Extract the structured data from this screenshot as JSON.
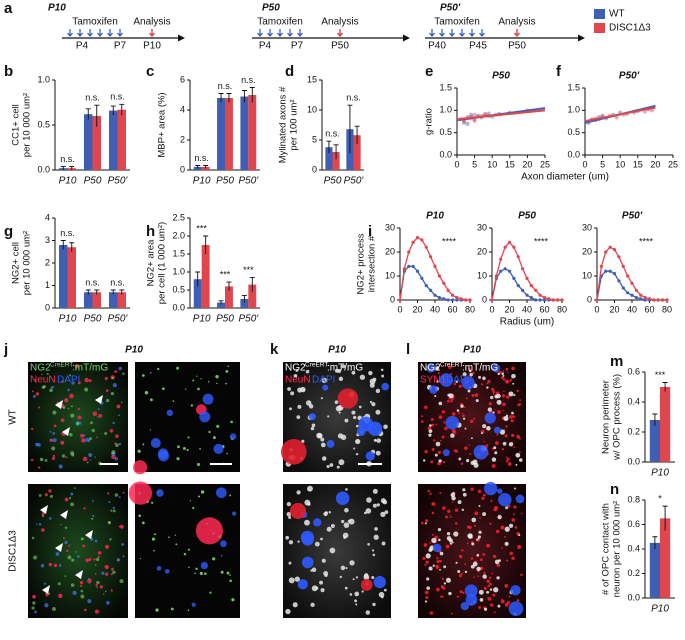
{
  "legend": [
    {
      "name": "WT",
      "color": "#3e5fb4"
    },
    {
      "name": "DISC1Δ3",
      "color": "#e0464e"
    }
  ],
  "timelines": [
    {
      "letter": "a",
      "title": "P10",
      "treatment": "Tamoxifen",
      "analysis": "Analysis",
      "ticks": [
        "P4",
        "P7",
        "P10"
      ]
    },
    {
      "title": "P50",
      "treatment": "Tamoxifen",
      "analysis": "Analysis",
      "ticks": [
        "P4",
        "P7",
        "P50"
      ]
    },
    {
      "title": "P50'",
      "treatment": "Tamoxifen",
      "analysis": "Analysis",
      "ticks": [
        "P40",
        "P45",
        "P50"
      ]
    }
  ],
  "chart_data": [
    {
      "type": "bar",
      "panel": "b",
      "y_label": [
        "CC1+ cell",
        "per 10 000 um²"
      ],
      "categories": [
        "P10",
        "P50",
        "P50'"
      ],
      "series": [
        {
          "name": "WT",
          "color": "#3e5fb4",
          "values": [
            0.02,
            0.62,
            0.66
          ],
          "errors": [
            0.02,
            0.06,
            0.05
          ]
        },
        {
          "name": "DISC1Δ3",
          "color": "#e0464e",
          "values": [
            0.02,
            0.6,
            0.67
          ],
          "errors": [
            0.02,
            0.12,
            0.06
          ]
        }
      ],
      "annotations": [
        "n.s.",
        "n.s.",
        "n.s."
      ],
      "ylim": [
        0,
        1
      ],
      "yticks": [
        {
          "value": 0,
          "label": "0.0"
        },
        {
          "value": 0.5,
          "label": "0.5"
        },
        {
          "value": 1,
          "label": "1.0"
        }
      ]
    },
    {
      "type": "bar",
      "panel": "c",
      "y_label": [
        "MBP+ area (%)"
      ],
      "categories": [
        "P10",
        "P50",
        "P50'"
      ],
      "series": [
        {
          "name": "WT",
          "color": "#3e5fb4",
          "values": [
            0.2,
            4.8,
            4.9
          ],
          "errors": [
            0.1,
            0.3,
            0.4
          ]
        },
        {
          "name": "DISC1Δ3",
          "color": "#e0464e",
          "values": [
            0.2,
            4.8,
            5.0
          ],
          "errors": [
            0.1,
            0.3,
            0.5
          ]
        }
      ],
      "annotations": [
        "n.s.",
        "n.s.",
        "n.s."
      ],
      "ylim": [
        0,
        6
      ],
      "yticks": [
        0,
        2,
        4,
        6
      ]
    },
    {
      "type": "bar",
      "panel": "d",
      "y_label": [
        "Mylinated axons #",
        "per 100 um²"
      ],
      "categories": [
        "P50",
        "P50'"
      ],
      "series": [
        {
          "name": "WT",
          "color": "#3e5fb4",
          "values": [
            3.8,
            6.8
          ],
          "errors": [
            1.0,
            4.0
          ]
        },
        {
          "name": "DISC1Δ3",
          "color": "#e0464e",
          "values": [
            3.0,
            5.8
          ],
          "errors": [
            1.2,
            1.5
          ]
        }
      ],
      "annotations": [
        "n.s.",
        "n.s."
      ],
      "ylim": [
        0,
        15
      ],
      "yticks": [
        0,
        5,
        10,
        15
      ]
    },
    {
      "type": "scatter",
      "panel": "e",
      "title": "P50",
      "y_label": [
        "g-ratio"
      ],
      "x_label": "Axon diameter (um)",
      "series": [
        {
          "name": "WT",
          "color": "#3e5fb4",
          "x": [
            2,
            3,
            4,
            5,
            6,
            8,
            10,
            12,
            3,
            4,
            7,
            9,
            15
          ],
          "values": [
            0.75,
            0.82,
            0.85,
            0.8,
            0.88,
            0.9,
            0.86,
            0.92,
            0.7,
            0.9,
            0.84,
            0.93,
            0.95
          ],
          "fit": {
            "x": [
              0,
              25
            ],
            "values": [
              0.78,
              1.05
            ]
          }
        },
        {
          "name": "DISC1Δ3",
          "color": "#e0464e",
          "x": [
            1,
            2,
            3,
            4,
            5,
            6,
            7,
            9,
            11,
            2,
            5,
            8,
            20
          ],
          "values": [
            0.8,
            0.78,
            0.85,
            0.82,
            0.9,
            0.86,
            0.88,
            0.87,
            0.9,
            0.72,
            0.76,
            0.92,
            1.0
          ],
          "fit": {
            "x": [
              0,
              25
            ],
            "values": [
              0.8,
              1.0
            ]
          }
        }
      ],
      "xlim": [
        0,
        25
      ],
      "xticks": [
        0,
        5,
        10,
        15,
        20,
        25
      ],
      "ylim": [
        0,
        1.5
      ],
      "yticks": [
        {
          "value": 0,
          "label": "0.0"
        },
        {
          "value": 0.5,
          "label": "0.5"
        },
        {
          "value": 1,
          "label": "1.0"
        },
        {
          "value": 1.5,
          "label": "1.5"
        }
      ]
    },
    {
      "type": "scatter",
      "panel": "f",
      "title": "P50'",
      "series": [
        {
          "name": "WT",
          "color": "#3e5fb4",
          "x": [
            1,
            2,
            3,
            4,
            5,
            6,
            8,
            10,
            12,
            15,
            18
          ],
          "values": [
            0.72,
            0.8,
            0.78,
            0.85,
            0.88,
            0.82,
            0.9,
            0.95,
            0.92,
            0.98,
            1.02
          ],
          "fit": {
            "x": [
              0,
              20
            ],
            "values": [
              0.72,
              1.1
            ]
          }
        },
        {
          "name": "DISC1Δ3",
          "color": "#e0464e",
          "x": [
            1,
            2,
            3,
            4,
            5,
            7,
            9,
            11,
            14,
            17,
            19
          ],
          "values": [
            0.75,
            0.78,
            0.82,
            0.8,
            0.86,
            0.88,
            0.84,
            0.9,
            0.95,
            0.97,
            1.0
          ],
          "fit": {
            "x": [
              0,
              20
            ],
            "values": [
              0.76,
              1.06
            ]
          }
        }
      ],
      "xlim": [
        0,
        25
      ],
      "xticks": [
        0,
        5,
        10,
        15,
        20,
        25
      ],
      "ylim": [
        0,
        1.5
      ],
      "yticks": [
        {
          "value": 0,
          "label": "0.0"
        },
        {
          "value": 0.5,
          "label": "0.5"
        },
        {
          "value": 1,
          "label": "1.0"
        },
        {
          "value": 1.5,
          "label": "1.5"
        }
      ]
    },
    {
      "type": "bar",
      "panel": "g",
      "y_label": [
        "NG2+ cell",
        "per 10 000 um²"
      ],
      "categories": [
        "P10",
        "P50",
        "P50'"
      ],
      "series": [
        {
          "name": "WT",
          "color": "#3e5fb4",
          "values": [
            2.8,
            0.7,
            0.7
          ],
          "errors": [
            0.2,
            0.1,
            0.1
          ]
        },
        {
          "name": "DISC1Δ3",
          "color": "#e0464e",
          "values": [
            2.7,
            0.7,
            0.7
          ],
          "errors": [
            0.2,
            0.1,
            0.1
          ]
        }
      ],
      "annotations": [
        "n.s.",
        "n.s.",
        "n.s."
      ],
      "ylim": [
        0,
        4
      ],
      "yticks": [
        0,
        1,
        2,
        3,
        4
      ]
    },
    {
      "type": "bar",
      "panel": "h",
      "y_label": [
        "NG2+ area",
        "per cell (1 000 um²)"
      ],
      "categories": [
        "P10",
        "P50",
        "P50'"
      ],
      "series": [
        {
          "name": "WT",
          "color": "#3e5fb4",
          "values": [
            0.8,
            0.15,
            0.25
          ],
          "errors": [
            0.2,
            0.05,
            0.1
          ]
        },
        {
          "name": "DISC1Δ3",
          "color": "#e0464e",
          "values": [
            1.75,
            0.6,
            0.65
          ],
          "errors": [
            0.25,
            0.12,
            0.2
          ]
        }
      ],
      "annotations": [
        "***",
        "***",
        "***"
      ],
      "ylim": [
        0,
        2.5
      ],
      "yticks": [
        {
          "value": 0,
          "label": "0.0"
        },
        {
          "value": 0.5,
          "label": "0.5"
        },
        {
          "value": 1,
          "label": "1.0"
        },
        {
          "value": 1.5,
          "label": "1.5"
        },
        {
          "value": 2,
          "label": "2.0"
        },
        {
          "value": 2.5,
          "label": "2.5"
        }
      ]
    },
    {
      "type": "line",
      "panel": "i",
      "title": "P10",
      "y_label": [
        "NG2+ process",
        "intersection #"
      ],
      "annotation": "****",
      "x": [
        0,
        5,
        10,
        15,
        20,
        25,
        30,
        35,
        40,
        45,
        50,
        55,
        60,
        65,
        70,
        75,
        80
      ],
      "series": [
        {
          "name": "WT",
          "color": "#3e5fb4",
          "values": [
            0,
            12,
            14,
            14,
            12,
            9,
            6,
            4,
            2,
            1,
            0.5,
            0,
            0,
            0,
            0,
            0,
            0
          ]
        },
        {
          "name": "DISC1Δ3",
          "color": "#e0464e",
          "values": [
            0,
            13,
            20,
            24,
            26,
            25,
            22,
            18,
            14,
            10,
            7,
            4,
            2,
            1,
            0.5,
            0,
            0
          ]
        }
      ],
      "xlim": [
        0,
        80
      ],
      "xticks": [
        0,
        20,
        40,
        60,
        80
      ],
      "ylim": [
        0,
        30
      ],
      "yticks": [
        0,
        10,
        20,
        30
      ]
    },
    {
      "type": "line",
      "title": "P50",
      "x_label": "Radius (um)",
      "annotation": "****",
      "x": [
        0,
        5,
        10,
        15,
        20,
        25,
        30,
        35,
        40,
        45,
        50,
        55,
        60,
        65,
        70,
        75,
        80
      ],
      "series": [
        {
          "name": "WT",
          "color": "#3e5fb4",
          "values": [
            0,
            9,
            12,
            13,
            12,
            9,
            6,
            4,
            2,
            1,
            0,
            0,
            0,
            0,
            0,
            0,
            0
          ]
        },
        {
          "name": "DISC1Δ3",
          "color": "#e0464e",
          "values": [
            0,
            10,
            17,
            22,
            24,
            22,
            18,
            13,
            9,
            6,
            4,
            2,
            1,
            0.5,
            0,
            0,
            0
          ]
        }
      ],
      "xlim": [
        0,
        80
      ],
      "xticks": [
        0,
        20,
        40,
        60,
        80
      ],
      "ylim": [
        0,
        30
      ],
      "yticks": [
        0,
        10,
        20,
        30
      ]
    },
    {
      "type": "line",
      "title": "P50'",
      "annotation": "****",
      "x": [
        0,
        5,
        10,
        15,
        20,
        25,
        30,
        35,
        40,
        45,
        50,
        55,
        60,
        65,
        70,
        75,
        80
      ],
      "series": [
        {
          "name": "WT",
          "color": "#3e5fb4",
          "values": [
            0,
            10,
            12,
            12,
            11,
            8,
            5,
            3,
            2,
            1,
            0.5,
            0,
            0,
            0,
            0,
            0,
            0
          ]
        },
        {
          "name": "DISC1Δ3",
          "color": "#e0464e",
          "values": [
            0,
            14,
            20,
            22,
            21,
            18,
            14,
            10,
            7,
            4,
            2,
            1,
            0.5,
            0,
            0,
            0,
            0
          ]
        }
      ],
      "xlim": [
        0,
        80
      ],
      "xticks": [
        0,
        20,
        40,
        60,
        80
      ],
      "ylim": [
        0,
        30
      ],
      "yticks": [
        0,
        10,
        20,
        30
      ]
    },
    {
      "type": "bar",
      "panel": "m",
      "y_label": [
        "Neuron perimeter",
        "w/ OPC process (%)"
      ],
      "categories": [
        "P10"
      ],
      "series": [
        {
          "name": "WT",
          "color": "#3e5fb4",
          "values": [
            0.28
          ],
          "errors": [
            0.04
          ]
        },
        {
          "name": "DISC1Δ3",
          "color": "#e0464e",
          "values": [
            0.5
          ],
          "errors": [
            0.03
          ]
        }
      ],
      "annotations": [
        "***"
      ],
      "ylim": [
        0,
        0.6
      ],
      "yticks": [
        {
          "value": 0,
          "label": "0.0"
        },
        {
          "value": 0.2,
          "label": "0.2"
        },
        {
          "value": 0.4,
          "label": "0.4"
        },
        {
          "value": 0.6,
          "label": "0.6"
        }
      ]
    },
    {
      "type": "bar",
      "panel": "n",
      "y_label": [
        "# of OPC contact with",
        "neuron per 10 000 um²"
      ],
      "categories": [
        "P10"
      ],
      "series": [
        {
          "name": "WT",
          "color": "#3e5fb4",
          "values": [
            0.45
          ],
          "errors": [
            0.05
          ]
        },
        {
          "name": "DISC1Δ3",
          "color": "#e0464e",
          "values": [
            0.65
          ],
          "errors": [
            0.1
          ]
        }
      ],
      "annotations": [
        "*"
      ],
      "ylim": [
        0,
        0.8
      ],
      "yticks": [
        {
          "value": 0,
          "label": "0.0"
        },
        {
          "value": 0.2,
          "label": "0.2"
        },
        {
          "value": 0.4,
          "label": "0.4"
        },
        {
          "value": 0.6,
          "label": "0.6"
        },
        {
          "value": 0.8,
          "label": "0.8"
        }
      ]
    }
  ],
  "images": {
    "j": {
      "letter": "j",
      "title": "P10",
      "stain": [
        "NG2",
        "CreERT",
        ":mT/mG",
        "NeuN",
        "DAPI"
      ],
      "rows": [
        "WT",
        "DISC1Δ3"
      ]
    },
    "k": {
      "letter": "k",
      "title": "P10",
      "stain": [
        "NG2",
        "CreERT",
        ":mT/mG",
        "NeuN",
        "DAPI"
      ]
    },
    "l": {
      "letter": "l",
      "title": "P10",
      "stain": [
        "NG2",
        "CreERT",
        ":mT/mG",
        "SYN1",
        "DAPI"
      ]
    }
  }
}
